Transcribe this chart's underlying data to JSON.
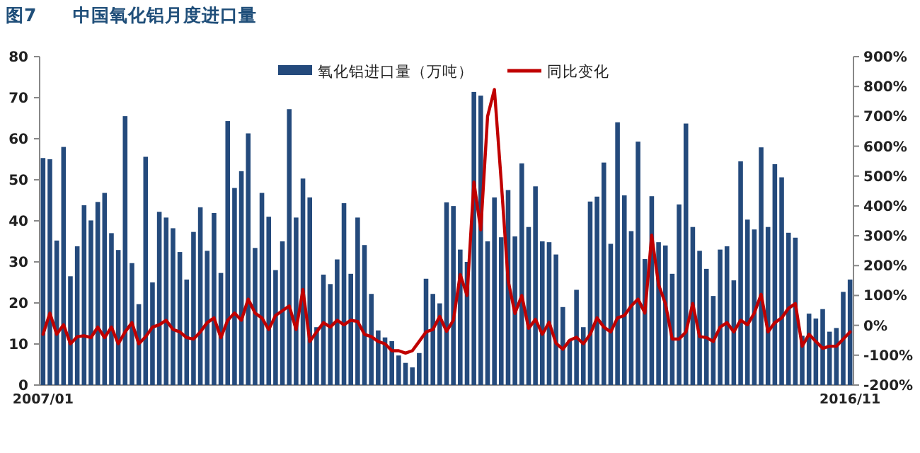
{
  "chart_data": {
    "type": "bar",
    "title": "图7　　中国氧化铝月度进口量",
    "legend": "top",
    "categories": [
      "2007/01",
      null,
      null,
      null,
      null,
      null,
      null,
      null,
      null,
      null,
      null,
      null,
      null,
      null,
      null,
      null,
      null,
      null,
      null,
      null,
      null,
      null,
      null,
      null,
      null,
      null,
      null,
      null,
      null,
      null,
      null,
      null,
      null,
      null,
      null,
      null,
      null,
      null,
      null,
      null,
      null,
      null,
      null,
      null,
      null,
      null,
      null,
      null,
      null,
      null,
      null,
      null,
      null,
      null,
      null,
      null,
      null,
      null,
      null,
      null,
      null,
      null,
      null,
      null,
      null,
      null,
      null,
      null,
      null,
      null,
      null,
      null,
      null,
      null,
      null,
      null,
      null,
      null,
      null,
      null,
      null,
      null,
      null,
      null,
      null,
      null,
      null,
      null,
      null,
      null,
      null,
      null,
      null,
      null,
      null,
      null,
      null,
      null,
      null,
      null,
      null,
      null,
      null,
      null,
      null,
      null,
      null,
      null,
      null,
      null,
      null,
      null,
      null,
      null,
      null,
      null,
      null,
      null,
      "2016/11"
    ],
    "ylim": [
      0,
      80
    ],
    "yticks": [
      0,
      10,
      20,
      30,
      40,
      50,
      60,
      70,
      80
    ],
    "y2lim": [
      -200,
      900
    ],
    "y2ticks": [
      {
        "value": -200,
        "label": "-200%"
      },
      {
        "value": -100,
        "label": "-100%"
      },
      {
        "value": 0,
        "label": "0%"
      },
      {
        "value": 100,
        "label": "100%"
      },
      {
        "value": 200,
        "label": "200%"
      },
      {
        "value": 300,
        "label": "300%"
      },
      {
        "value": 400,
        "label": "400%"
      },
      {
        "value": 500,
        "label": "500%"
      },
      {
        "value": 600,
        "label": "600%"
      },
      {
        "value": 700,
        "label": "700%"
      },
      {
        "value": 800,
        "label": "800%"
      },
      {
        "value": 900,
        "label": "900%"
      }
    ],
    "series": [
      {
        "name": "氧化铝进口量（万吨）",
        "type": "bar",
        "color": "#244a7c",
        "values": [
          55.3,
          55,
          35.2,
          58,
          26.5,
          33.8,
          43.8,
          40.1,
          44.6,
          46.8,
          37,
          32.9,
          65.5,
          29.7,
          19.7,
          55.6,
          25,
          42.2,
          40.8,
          38.2,
          32.4,
          25.7,
          37.3,
          43.3,
          32.7,
          41.9,
          27.3,
          64.3,
          48,
          52.1,
          61.3,
          33.4,
          46.8,
          41,
          28,
          35,
          67.2,
          40.8,
          50.3,
          45.7,
          14.1,
          26.9,
          24.6,
          30.6,
          44.3,
          27.1,
          40.8,
          34.1,
          22.2,
          13.3,
          11.6,
          10.7,
          7.2,
          5.4,
          4.3,
          7.8,
          25.9,
          22.2,
          19.9,
          44.5,
          43.6,
          33,
          30,
          71.4,
          70.5,
          35,
          45.7,
          36,
          47.5,
          36.2,
          54,
          38.5,
          48.4,
          35,
          34.8,
          31.8,
          19,
          11,
          23.2,
          14.1,
          44.7,
          45.9,
          54.2,
          34.4,
          64,
          46.2,
          37.5,
          59.3,
          30.7,
          46,
          34.8,
          34,
          27.1,
          44,
          63.7,
          38.5,
          32.7,
          28.3,
          21.7,
          33,
          33.8,
          25.5,
          54.5,
          40.3,
          37.9,
          57.9,
          38.5,
          53.8,
          50.6,
          37.1,
          35.9,
          12,
          17.4,
          16.2,
          18.5,
          13,
          13.9,
          22.7,
          25.7
        ]
      },
      {
        "name": "同比变化",
        "type": "line",
        "axis": "y2",
        "color": "#c00000",
        "values": [
          -30,
          41,
          -30,
          2,
          -62,
          -38,
          -35,
          -41,
          -6,
          -41,
          -6,
          -62,
          -22,
          9,
          -62,
          -38,
          -6,
          2,
          17,
          -14,
          -22,
          -41,
          -46,
          -22,
          9,
          25,
          -41,
          17,
          41,
          17,
          88,
          41,
          25,
          -14,
          33,
          49,
          65,
          -14,
          120,
          -54,
          -22,
          9,
          -6,
          17,
          2,
          17,
          13,
          -30,
          -38,
          -54,
          -62,
          -85,
          -85,
          -93,
          -85,
          -54,
          -22,
          -14,
          30,
          -20,
          17,
          170,
          100,
          480,
          320,
          700,
          790,
          480,
          150,
          40,
          100,
          -10,
          20,
          -30,
          10,
          -60,
          -80,
          -50,
          -40,
          -62,
          -30,
          25,
          -6,
          -22,
          25,
          33,
          65,
          88,
          41,
          302,
          136,
          73,
          -46,
          -46,
          -22,
          73,
          -38,
          -41,
          -54,
          -6,
          9,
          -22,
          17,
          2,
          41,
          104,
          -22,
          9,
          25,
          57,
          73,
          -70,
          -30,
          -54,
          -77,
          -70,
          -70,
          -46,
          -22
        ]
      }
    ]
  }
}
